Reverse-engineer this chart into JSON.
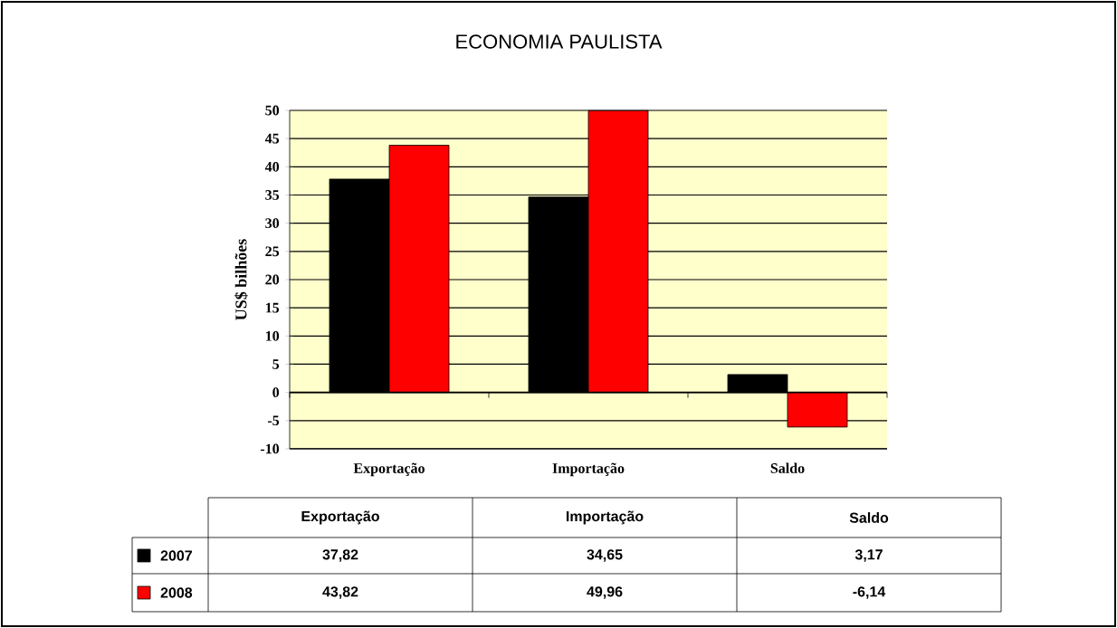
{
  "chart_data": {
    "type": "bar",
    "title": "ECONOMIA PAULISTA",
    "ylabel": "US$ bilhões",
    "categories": [
      "Exportação",
      "Importação",
      "Saldo"
    ],
    "series": [
      {
        "name": "2007",
        "color": "#000000",
        "values": [
          37.82,
          34.65,
          3.17
        ],
        "value_labels": [
          "37,82",
          "34,65",
          "3,17"
        ]
      },
      {
        "name": "2008",
        "color": "#ff0000",
        "values": [
          43.82,
          49.96,
          -6.14
        ],
        "value_labels": [
          "43,82",
          "49,96",
          "-6,14"
        ]
      }
    ],
    "ylim": [
      -10,
      50
    ],
    "yticks": [
      -10,
      -5,
      0,
      5,
      10,
      15,
      20,
      25,
      30,
      35,
      40,
      45,
      50
    ],
    "grid": "y",
    "legend": "bottom"
  }
}
